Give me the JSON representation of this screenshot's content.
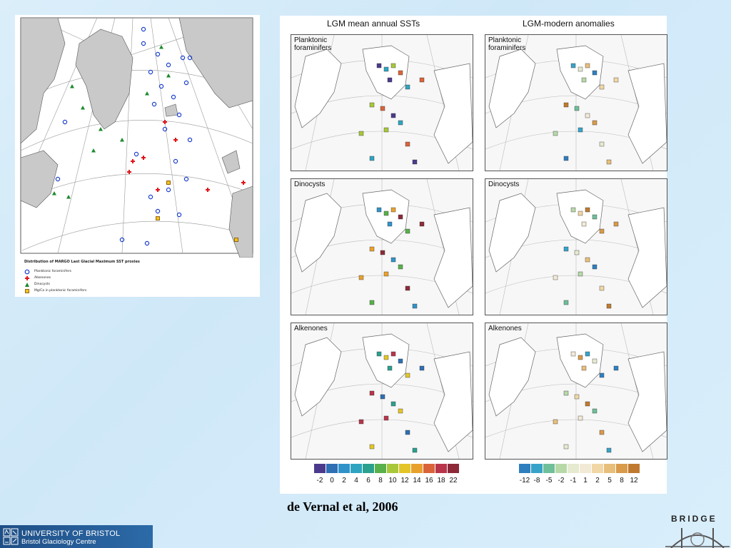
{
  "left_map": {
    "caption": "Distribution of MARGO Last Glacial Maximum SST proxies",
    "legend": [
      {
        "label": "Planktonic foraminifers",
        "symbol": "blue-circle"
      },
      {
        "label": "Alkenones",
        "symbol": "red-cross"
      },
      {
        "label": "Dinocysts",
        "symbol": "green-triangle"
      },
      {
        "label": "Mg/Ca in planktonic foraminifers",
        "symbol": "yellow-square"
      }
    ]
  },
  "right_figure": {
    "col1_title": "LGM mean annual SSTs",
    "col2_title": "LGM-modern anomalies",
    "rows": [
      {
        "label": "Planktonic\nforaminifers"
      },
      {
        "label": "Dinocysts"
      },
      {
        "label": "Alkenones"
      }
    ],
    "sst_scale": {
      "ticks": [
        "-2",
        "0",
        "2",
        "4",
        "6",
        "8",
        "10",
        "12",
        "14",
        "16",
        "18",
        "22"
      ],
      "colors": [
        "#4b3a8c",
        "#2f6fb3",
        "#2f93c9",
        "#2fa4c0",
        "#2aa08f",
        "#58b14a",
        "#a8c83a",
        "#e3c52a",
        "#e9a12d",
        "#d9643a",
        "#b8354a",
        "#8c2a3a"
      ]
    },
    "anomaly_scale": {
      "ticks": [
        "-12",
        "-8",
        "-5",
        "-2",
        "-1",
        "1",
        "2",
        "5",
        "8",
        "12"
      ],
      "colors": [
        "#2f7fbf",
        "#38a3c8",
        "#6fbf9a",
        "#b7d9a8",
        "#e5ead0",
        "#f2ead6",
        "#f1d7a6",
        "#e8bf7a",
        "#d99a4a",
        "#c07a2f"
      ]
    }
  },
  "citation": "de Vernal et al, 2006",
  "footer": {
    "uni": "UNIVERSITY OF BRISTOL",
    "centre": "Bristol Glaciology Centre",
    "bridge": "BRIDGE"
  }
}
